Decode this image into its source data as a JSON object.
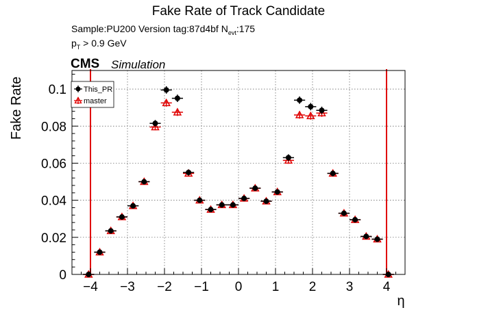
{
  "chart_data": {
    "type": "scatter",
    "title": "Fake Rate of Track Candidate",
    "info": {
      "sample_text": "Sample:PU200   Version tag:87d4bf  N",
      "nevt_sub": "evt",
      "nevt_value": ":175",
      "pt_text": "p",
      "pt_sub": "T",
      "pt_cut": " > 0.9 GeV"
    },
    "cms_label": "CMS",
    "simulation_label": "Simulation",
    "xlabel": "η",
    "ylabel": "Fake Rate",
    "xlim": [
      -4.5,
      4.5
    ],
    "ylim": [
      0,
      0.11
    ],
    "xticks": [
      -4,
      -3,
      -2,
      -1,
      0,
      1,
      2,
      3,
      4
    ],
    "xtick_labels": [
      "−4",
      "−3",
      "−2",
      "−1",
      "0",
      "1",
      "2",
      "3",
      "4"
    ],
    "yticks": [
      0,
      0.02,
      0.04,
      0.06,
      0.08,
      0.1
    ],
    "ytick_labels": [
      "0",
      "0.02",
      "0.04",
      "0.06",
      "0.08",
      "0.1"
    ],
    "grid": true,
    "legend_position": "top-left",
    "vertical_lines": [
      -4,
      4
    ],
    "x_error": 0.15,
    "series": [
      {
        "name": "This_PR",
        "color": "#000000",
        "marker": "filled-circle",
        "points": [
          [
            -4.05,
            0.0
          ],
          [
            -3.75,
            0.012
          ],
          [
            -3.45,
            0.0235
          ],
          [
            -3.15,
            0.031
          ],
          [
            -2.85,
            0.037
          ],
          [
            -2.55,
            0.05
          ],
          [
            -2.25,
            0.0815
          ],
          [
            -1.95,
            0.0995
          ],
          [
            -1.65,
            0.095
          ],
          [
            -1.35,
            0.055
          ],
          [
            -1.05,
            0.04
          ],
          [
            -0.75,
            0.035
          ],
          [
            -0.45,
            0.0375
          ],
          [
            -0.15,
            0.0375
          ],
          [
            0.15,
            0.041
          ],
          [
            0.45,
            0.0465
          ],
          [
            0.75,
            0.0395
          ],
          [
            1.05,
            0.0445
          ],
          [
            1.35,
            0.063
          ],
          [
            1.65,
            0.094
          ],
          [
            1.95,
            0.0905
          ],
          [
            2.25,
            0.0885
          ],
          [
            2.55,
            0.0545
          ],
          [
            2.85,
            0.033
          ],
          [
            3.15,
            0.0295
          ],
          [
            3.45,
            0.0205
          ],
          [
            3.75,
            0.019
          ],
          [
            4.05,
            0.0
          ]
        ],
        "yerr": [
          0.0005,
          0.001,
          0.001,
          0.0012,
          0.0012,
          0.0013,
          0.0018,
          0.002,
          0.002,
          0.0016,
          0.0012,
          0.0012,
          0.0012,
          0.0012,
          0.0013,
          0.0013,
          0.0012,
          0.0013,
          0.0018,
          0.002,
          0.002,
          0.002,
          0.0016,
          0.0012,
          0.0012,
          0.001,
          0.001,
          0.0005
        ]
      },
      {
        "name": "master",
        "color": "#e00000",
        "marker": "open-triangle",
        "points": [
          [
            -4.05,
            0.0
          ],
          [
            -3.75,
            0.012
          ],
          [
            -3.45,
            0.0235
          ],
          [
            -3.15,
            0.031
          ],
          [
            -2.85,
            0.037
          ],
          [
            -2.55,
            0.05
          ],
          [
            -2.25,
            0.0795
          ],
          [
            -1.95,
            0.0925
          ],
          [
            -1.65,
            0.0875
          ],
          [
            -1.35,
            0.0545
          ],
          [
            -1.05,
            0.04
          ],
          [
            -0.75,
            0.035
          ],
          [
            -0.45,
            0.0375
          ],
          [
            -0.15,
            0.0375
          ],
          [
            0.15,
            0.041
          ],
          [
            0.45,
            0.0465
          ],
          [
            0.75,
            0.0395
          ],
          [
            1.05,
            0.0445
          ],
          [
            1.35,
            0.0615
          ],
          [
            1.65,
            0.086
          ],
          [
            1.95,
            0.0855
          ],
          [
            2.25,
            0.087
          ],
          [
            2.55,
            0.0545
          ],
          [
            2.85,
            0.033
          ],
          [
            3.15,
            0.0295
          ],
          [
            3.45,
            0.0205
          ],
          [
            3.75,
            0.019
          ],
          [
            4.05,
            0.0
          ]
        ],
        "yerr": [
          0.0005,
          0.001,
          0.001,
          0.0012,
          0.0012,
          0.0013,
          0.0018,
          0.002,
          0.002,
          0.0016,
          0.0012,
          0.0012,
          0.0012,
          0.0012,
          0.0013,
          0.0013,
          0.0012,
          0.0013,
          0.0018,
          0.002,
          0.002,
          0.002,
          0.0016,
          0.0012,
          0.0012,
          0.001,
          0.001,
          0.0005
        ]
      }
    ]
  }
}
